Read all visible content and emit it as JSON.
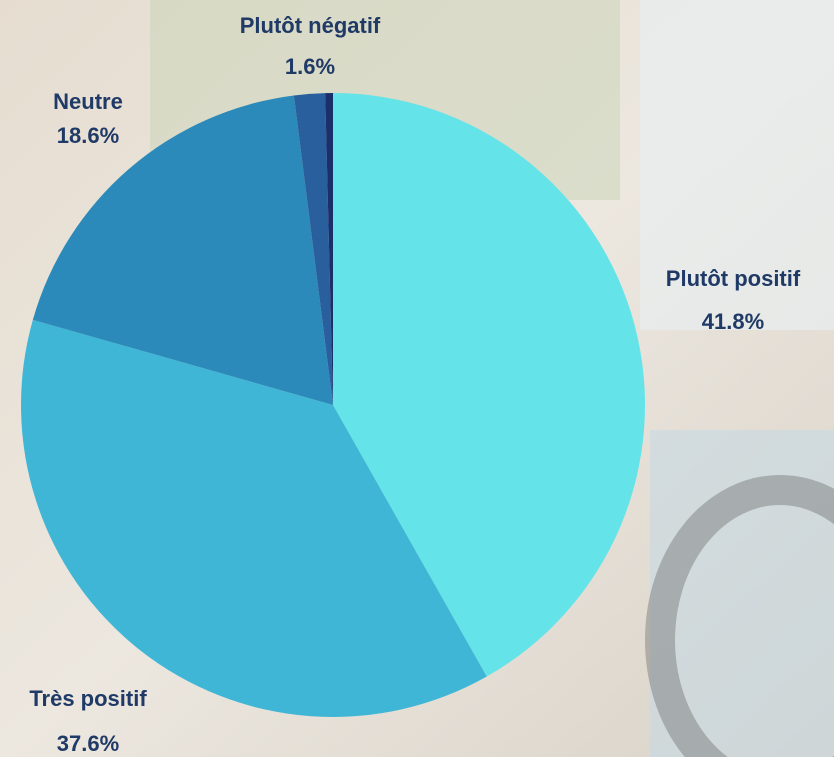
{
  "chart_data": {
    "type": "pie",
    "categories": [
      "Plutôt positif",
      "Très positif",
      "Neutre",
      "Plutôt négatif",
      null
    ],
    "values": [
      41.8,
      37.6,
      18.6,
      1.6,
      0.4
    ],
    "value_labels": [
      "41.8%",
      "37.6%",
      "18.6%",
      "1.6%",
      null
    ],
    "colors": [
      "#64e3e8",
      "#3fb6d6",
      "#2b8ab9",
      "#2a5f9e",
      "#1b2f6b"
    ]
  }
}
